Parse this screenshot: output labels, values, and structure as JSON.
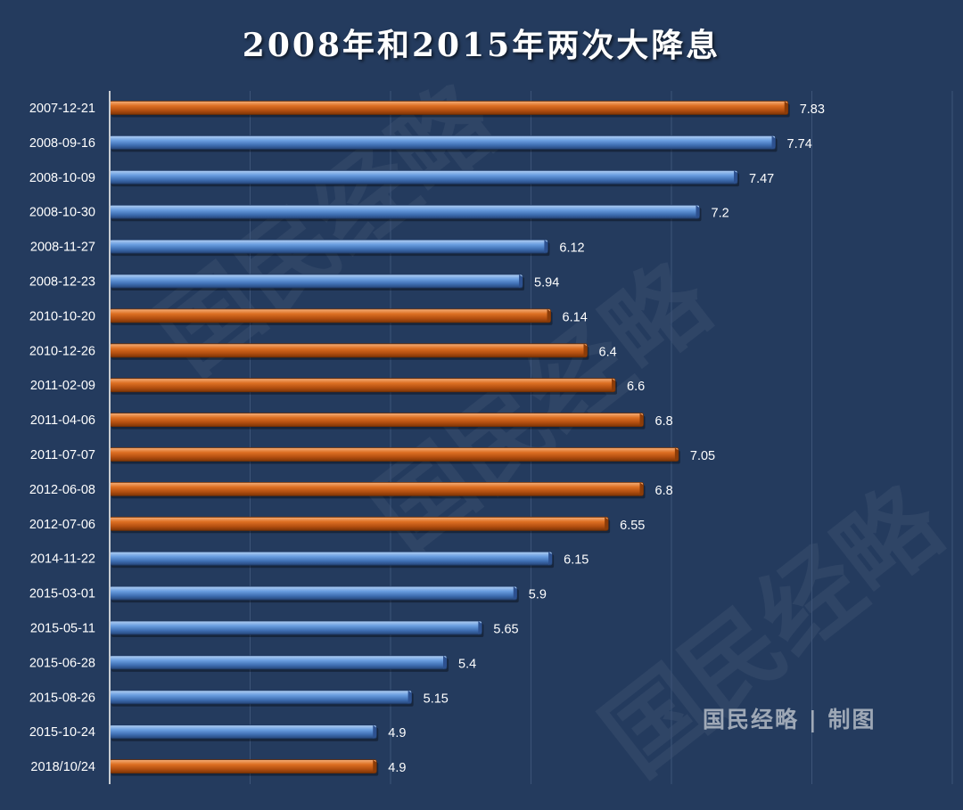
{
  "chart_data": {
    "type": "bar",
    "orientation": "horizontal",
    "title": "2008年和2015年两次大降息",
    "categories": [
      "2007-12-21",
      "2008-09-16",
      "2008-10-09",
      "2008-10-30",
      "2008-11-27",
      "2008-12-23",
      "2010-10-20",
      "2010-12-26",
      "2011-02-09",
      "2011-04-06",
      "2011-07-07",
      "2012-06-08",
      "2012-07-06",
      "2014-11-22",
      "2015-03-01",
      "2015-05-11",
      "2015-06-28",
      "2015-08-26",
      "2015-10-24",
      "2018/10/24"
    ],
    "values": [
      7.83,
      7.74,
      7.47,
      7.2,
      6.12,
      5.94,
      6.14,
      6.4,
      6.6,
      6.8,
      7.05,
      6.8,
      6.55,
      6.15,
      5.9,
      5.65,
      5.4,
      5.15,
      4.9,
      4.9
    ],
    "value_labels": [
      "7.83",
      "7.74",
      "7.47",
      "7.2",
      "6.12",
      "5.94",
      "6.14",
      "6.4",
      "6.6",
      "6.8",
      "7.05",
      "6.8",
      "6.55",
      "6.15",
      "5.9",
      "5.65",
      "5.4",
      "5.15",
      "4.9",
      "4.9"
    ],
    "bar_colors": [
      "orange",
      "blue",
      "blue",
      "blue",
      "blue",
      "blue",
      "orange",
      "orange",
      "orange",
      "orange",
      "orange",
      "orange",
      "orange",
      "blue",
      "blue",
      "blue",
      "blue",
      "blue",
      "blue",
      "orange"
    ],
    "xlim": [
      3,
      8
    ],
    "grid": true,
    "legend": "none"
  },
  "colors": {
    "background": "#243b5e",
    "gridline": "#3d5478",
    "axis": "#c8ccd2",
    "orange": "#d8681c",
    "blue": "#5b8fd4",
    "label_text": "#ffffff"
  },
  "watermark": "国民经略",
  "credit": "国民经略 | 制图"
}
